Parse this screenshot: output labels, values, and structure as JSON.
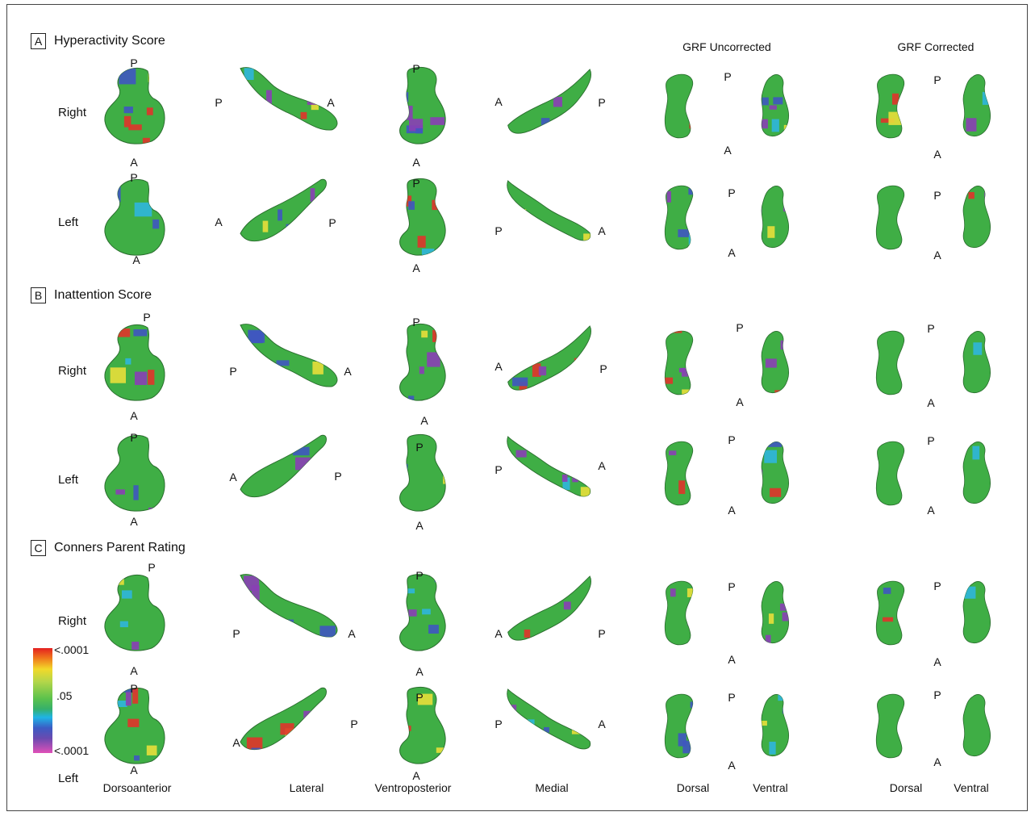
{
  "panels": [
    {
      "letter": "A",
      "title": "Hyperactivity Score"
    },
    {
      "letter": "B",
      "title": "Inattention Score"
    },
    {
      "letter": "C",
      "title": "Conners Parent Rating"
    }
  ],
  "column_headers": {
    "grf_uncorrected": "GRF Uncorrected",
    "grf_corrected": "GRF Corrected"
  },
  "hemisphere_labels": {
    "right": "Right",
    "left": "Left"
  },
  "bottom_labels": {
    "dorsoanterior": "Dorsoanterior",
    "lateral": "Lateral",
    "ventroposterior": "Ventroposterior",
    "medial": "Medial",
    "dorsal_1": "Dorsal",
    "ventral_1": "Ventral",
    "dorsal_2": "Dorsal",
    "ventral_2": "Ventral"
  },
  "orientation": {
    "posterior": "P",
    "anterior": "A"
  },
  "colorbar": {
    "top": "<.0001",
    "middle": ".05",
    "bottom": "<.0001",
    "colors": [
      "#e32020",
      "#f2d92a",
      "#5cc24c",
      "#1fb4e6",
      "#3c5cc4",
      "#e050b8"
    ]
  },
  "surface_colors": {
    "base": "#3fae45",
    "blue": "#3f56c0",
    "purple": "#8a3fb5",
    "yellow": "#e8df3a",
    "red": "#e0342a",
    "cyan": "#2fb6dc"
  }
}
